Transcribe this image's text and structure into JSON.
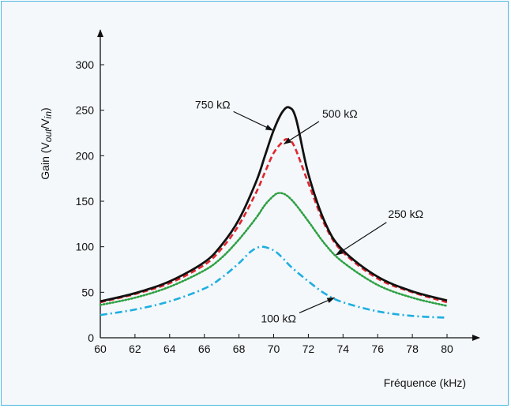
{
  "chart_data": {
    "type": "line",
    "xlabel": "Fréquence (kHz)",
    "ylabel": {
      "base": "Gain (V",
      "sub1": "out",
      "slash": "/V",
      "sub2": "in",
      "close": ")"
    },
    "xlim": [
      60,
      80
    ],
    "ylim": [
      0,
      300
    ],
    "xticks": [
      60,
      62,
      64,
      66,
      68,
      70,
      72,
      74,
      76,
      78,
      80
    ],
    "yticks": [
      0,
      50,
      100,
      150,
      200,
      250,
      300
    ],
    "grid": false,
    "legend": "none",
    "series": [
      {
        "label": "750 kΩ",
        "color": "#111111",
        "style": "solid",
        "x": [
          60,
          62,
          64,
          66,
          67,
          68,
          69,
          69.5,
          70,
          70.5,
          70.9,
          71.3,
          72,
          73,
          74,
          76,
          78,
          80
        ],
        "y": [
          40,
          49,
          62,
          83,
          102,
          130,
          172,
          200,
          228,
          248,
          253,
          240,
          180,
          125,
          96,
          67,
          51,
          41
        ]
      },
      {
        "label": "500 kΩ",
        "color": "#e0262d",
        "style": "dashed",
        "x": [
          60,
          62,
          64,
          66,
          67,
          68,
          69,
          69.5,
          70,
          70.5,
          70.8,
          71.2,
          72,
          73,
          74,
          76,
          78,
          80
        ],
        "y": [
          39,
          48,
          60,
          80,
          98,
          124,
          160,
          182,
          203,
          215,
          218,
          210,
          170,
          122,
          94,
          65,
          50,
          39
        ]
      },
      {
        "label": "250 kΩ",
        "color": "#2ea043",
        "style": "dotted",
        "x": [
          60,
          62,
          64,
          66,
          67,
          68,
          69,
          69.5,
          70,
          70.3,
          70.7,
          71.2,
          72,
          73,
          74,
          76,
          78,
          80
        ],
        "y": [
          36,
          44,
          56,
          74,
          88,
          108,
          132,
          146,
          156,
          159,
          157,
          148,
          128,
          102,
          83,
          58,
          44,
          35
        ]
      },
      {
        "label": "100 kΩ",
        "color": "#1eaee0",
        "style": "dashdot",
        "x": [
          60,
          62,
          64,
          66,
          67,
          68,
          68.7,
          69.3,
          70,
          70.5,
          71,
          72,
          73,
          74,
          76,
          78,
          80
        ],
        "y": [
          25,
          31,
          40,
          54,
          66,
          82,
          95,
          100,
          96,
          88,
          78,
          62,
          48,
          39,
          29,
          24,
          22
        ]
      }
    ],
    "annotations": [
      {
        "text": "750 kΩ",
        "series": 0,
        "tx": 67.5,
        "ty": 252,
        "ax": 69.95,
        "ay": 228
      },
      {
        "text": "500 kΩ",
        "series": 1,
        "tx": 72.8,
        "ty": 242,
        "ax": 70.6,
        "ay": 213
      },
      {
        "text": "250 kΩ",
        "series": 2,
        "tx": 76.6,
        "ty": 132,
        "ax": 73.6,
        "ay": 91
      },
      {
        "text": "100 kΩ",
        "series": 3,
        "tx": 71.3,
        "ty": 17,
        "ax": 73.5,
        "ay": 44
      }
    ]
  }
}
